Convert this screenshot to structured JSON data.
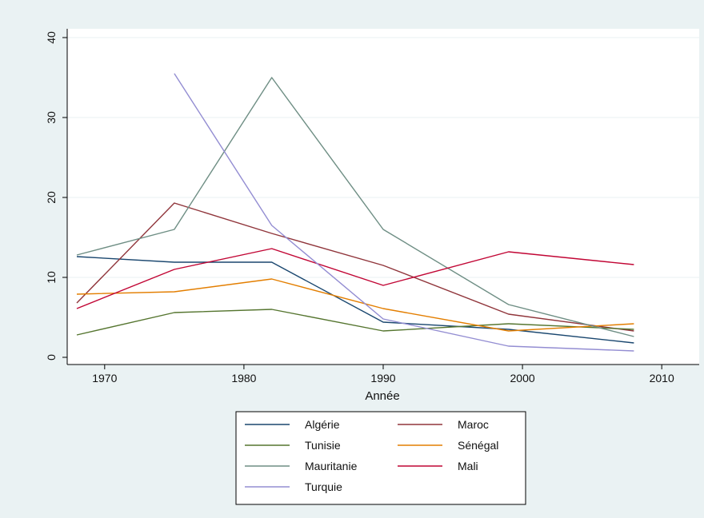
{
  "chart_data": {
    "type": "line",
    "title": "",
    "xlabel": "Année",
    "ylabel": "",
    "xlim": [
      1968,
      2012
    ],
    "ylim": [
      0,
      40
    ],
    "xticks": [
      1970,
      1980,
      1990,
      2000,
      2010
    ],
    "yticks": [
      0,
      10,
      20,
      30,
      40
    ],
    "grid": "horizontal",
    "legend_position": "bottom",
    "series": [
      {
        "name": "Algérie",
        "color": "#1a476f",
        "points": [
          [
            1968,
            12.6
          ],
          [
            1975,
            11.9
          ],
          [
            1982,
            11.9
          ],
          [
            1990,
            4.4
          ],
          [
            1999,
            3.5
          ],
          [
            2008,
            1.8
          ]
        ]
      },
      {
        "name": "Maroc",
        "color": "#90353b",
        "points": [
          [
            1968,
            6.8
          ],
          [
            1975,
            19.3
          ],
          [
            1982,
            15.5
          ],
          [
            1990,
            11.5
          ],
          [
            1999,
            5.4
          ],
          [
            2008,
            3.3
          ]
        ]
      },
      {
        "name": "Tunisie",
        "color": "#55752f",
        "points": [
          [
            1968,
            2.8
          ],
          [
            1975,
            5.6
          ],
          [
            1982,
            6.0
          ],
          [
            1990,
            3.3
          ],
          [
            1999,
            4.2
          ],
          [
            2008,
            3.5
          ]
        ]
      },
      {
        "name": "Sénégal",
        "color": "#e37e00",
        "points": [
          [
            1968,
            7.9
          ],
          [
            1975,
            8.2
          ],
          [
            1982,
            9.8
          ],
          [
            1990,
            6.1
          ],
          [
            1999,
            3.3
          ],
          [
            2008,
            4.2
          ]
        ]
      },
      {
        "name": "Mauritanie",
        "color": "#6e8e84",
        "points": [
          [
            1968,
            12.8
          ],
          [
            1975,
            16.0
          ],
          [
            1982,
            35.0
          ],
          [
            1990,
            16.0
          ],
          [
            1999,
            6.6
          ],
          [
            2008,
            2.6
          ]
        ]
      },
      {
        "name": "Mali",
        "color": "#c10534",
        "points": [
          [
            1968,
            6.1
          ],
          [
            1975,
            11.0
          ],
          [
            1982,
            13.6
          ],
          [
            1990,
            9.0
          ],
          [
            1999,
            13.2
          ],
          [
            2008,
            11.6
          ]
        ]
      },
      {
        "name": "Turquie",
        "color": "#938dd2",
        "points": [
          [
            1975,
            35.5
          ],
          [
            1982,
            16.5
          ],
          [
            1990,
            4.8
          ],
          [
            1999,
            1.4
          ],
          [
            2008,
            0.8
          ]
        ]
      }
    ]
  }
}
